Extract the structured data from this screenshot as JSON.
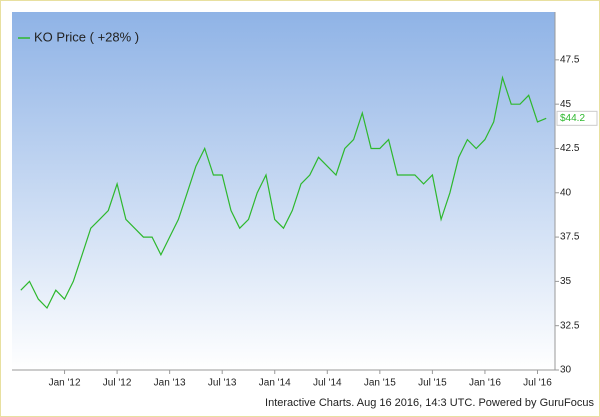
{
  "chart_data": {
    "type": "line",
    "x": [
      "2011-08",
      "2011-09",
      "2011-10",
      "2011-11",
      "2011-12",
      "2012-01",
      "2012-02",
      "2012-03",
      "2012-04",
      "2012-05",
      "2012-06",
      "2012-07",
      "2012-08",
      "2012-09",
      "2012-10",
      "2012-11",
      "2012-12",
      "2013-01",
      "2013-02",
      "2013-03",
      "2013-04",
      "2013-05",
      "2013-06",
      "2013-07",
      "2013-08",
      "2013-09",
      "2013-10",
      "2013-11",
      "2013-12",
      "2014-01",
      "2014-02",
      "2014-03",
      "2014-04",
      "2014-05",
      "2014-06",
      "2014-07",
      "2014-08",
      "2014-09",
      "2014-10",
      "2014-11",
      "2014-12",
      "2015-01",
      "2015-02",
      "2015-03",
      "2015-04",
      "2015-05",
      "2015-06",
      "2015-07",
      "2015-08",
      "2015-09",
      "2015-10",
      "2015-11",
      "2015-12",
      "2016-01",
      "2016-02",
      "2016-03",
      "2016-04",
      "2016-05",
      "2016-06",
      "2016-07",
      "2016-08"
    ],
    "series": [
      {
        "name": "KO Price ( +28% )",
        "color": "#2eb82e",
        "values": [
          34.5,
          35,
          34,
          33.5,
          34.5,
          34,
          35,
          36.5,
          38,
          38.5,
          39,
          40.5,
          38.5,
          38,
          37.5,
          37.5,
          36.5,
          37.5,
          38.5,
          40,
          41.5,
          42.5,
          41,
          41,
          39,
          38,
          38.5,
          40,
          41,
          38.5,
          38,
          39,
          40.5,
          41,
          42,
          41.5,
          41,
          42.5,
          43,
          44.5,
          42.5,
          42.5,
          43,
          41,
          41,
          41,
          40.5,
          41,
          38.5,
          40,
          42,
          43,
          42.5,
          43,
          44,
          46.5,
          45,
          45,
          45.5,
          44,
          44.2
        ]
      }
    ],
    "last_label": "$44.2",
    "xlim": [
      "2011-07",
      "2016-09"
    ],
    "xticks": [
      {
        "value": "2012-01",
        "label": "Jan '12"
      },
      {
        "value": "2012-07",
        "label": "Jul '12"
      },
      {
        "value": "2013-01",
        "label": "Jan '13"
      },
      {
        "value": "2013-07",
        "label": "Jul '13"
      },
      {
        "value": "2014-01",
        "label": "Jan '14"
      },
      {
        "value": "2014-07",
        "label": "Jul '14"
      },
      {
        "value": "2015-01",
        "label": "Jan '15"
      },
      {
        "value": "2015-07",
        "label": "Jul '15"
      },
      {
        "value": "2016-01",
        "label": "Jan '16"
      },
      {
        "value": "2016-07",
        "label": "Jul '16"
      }
    ],
    "ylim": [
      30,
      50.2
    ],
    "yticks": [
      30,
      32.5,
      35,
      37.5,
      40,
      42.5,
      45,
      47.5
    ],
    "footer": "Interactive Charts. Aug 16 2016, 14:3 UTC. Powered by GuruFocus"
  }
}
